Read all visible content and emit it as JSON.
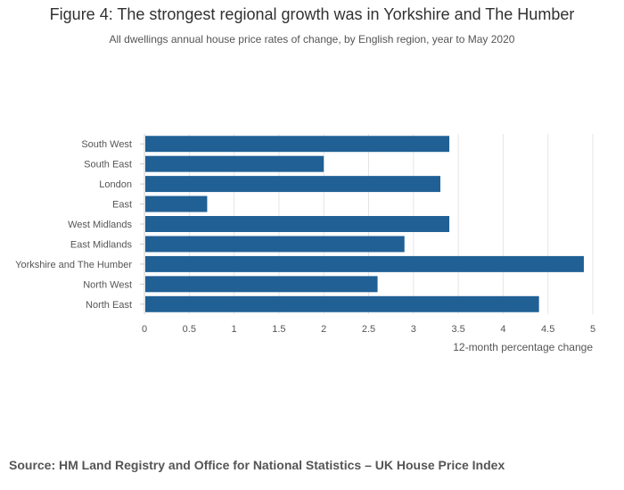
{
  "chart_data": {
    "type": "bar",
    "orientation": "horizontal",
    "title": "Figure 4: The strongest regional growth was in Yorkshire and The Humber",
    "subtitle": "All dwellings annual house price rates of change, by English region, year to May 2020",
    "xlabel": "12-month percentage change",
    "ylabel": "",
    "categories": [
      "South West",
      "South East",
      "London",
      "East",
      "West Midlands",
      "East Midlands",
      "Yorkshire and The Humber",
      "North West",
      "North East"
    ],
    "values": [
      3.4,
      2.0,
      3.3,
      0.7,
      3.4,
      2.9,
      4.9,
      2.6,
      4.4
    ],
    "xlim": [
      0,
      5
    ],
    "xticks": [
      "0",
      "0.5",
      "1",
      "1.5",
      "2",
      "2.5",
      "3",
      "3.5",
      "4",
      "4.5",
      "5"
    ],
    "grid": "vertical",
    "bar_color": "#206095"
  },
  "source": "Source: HM Land Registry and Office for National Statistics – UK House Price Index"
}
